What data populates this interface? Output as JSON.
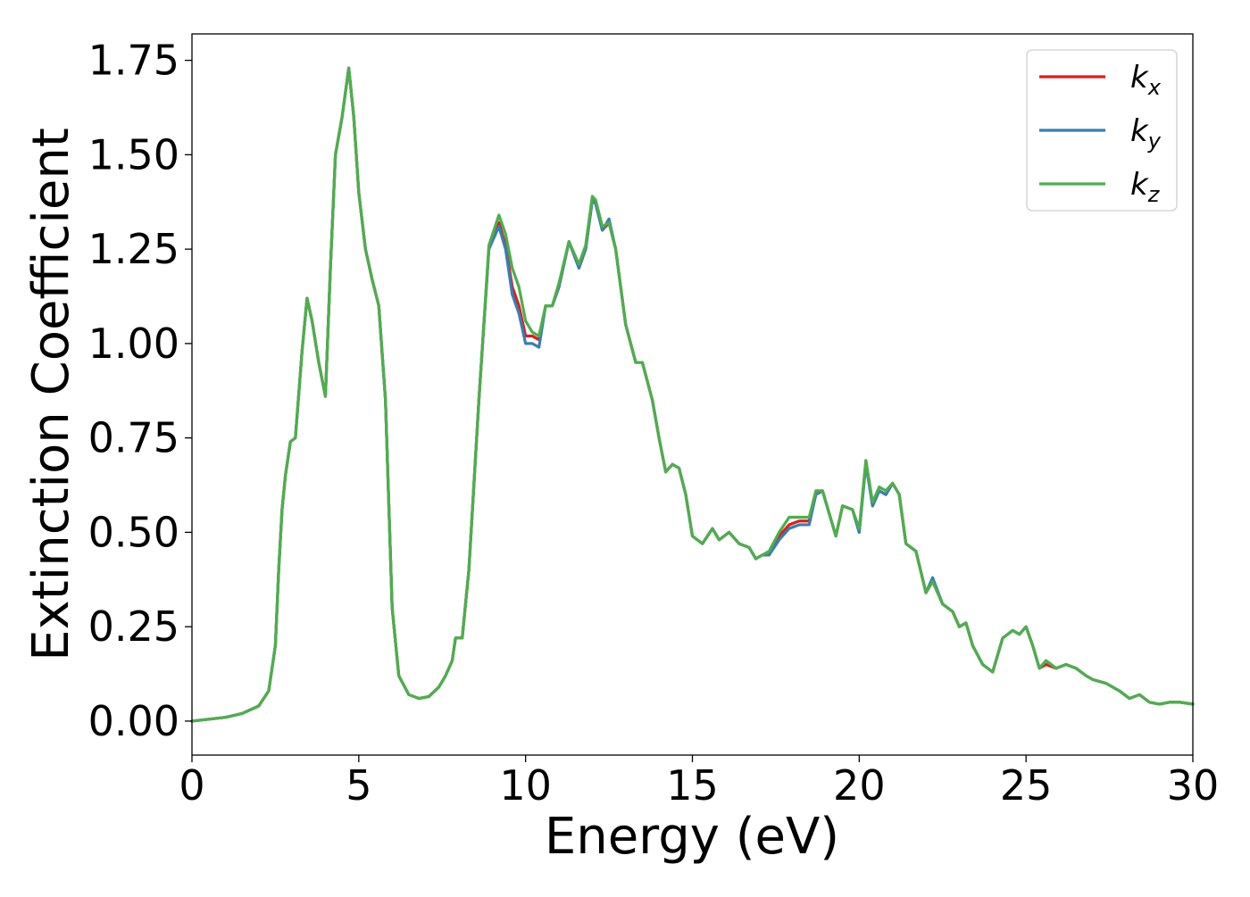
{
  "chart_data": {
    "type": "line",
    "title": "",
    "xlabel": "Energy (eV)",
    "ylabel": "Extinction Coefficient",
    "xlim": [
      0,
      30
    ],
    "ylim": [
      -0.09,
      1.82
    ],
    "xticks": [
      0,
      5,
      10,
      15,
      20,
      25,
      30
    ],
    "xtick_labels": [
      "0",
      "5",
      "10",
      "15",
      "20",
      "25",
      "30"
    ],
    "yticks": [
      0,
      0.25,
      0.5,
      0.75,
      1.0,
      1.25,
      1.5,
      1.75
    ],
    "ytick_labels": [
      "0.00",
      "0.25",
      "0.50",
      "0.75",
      "1.00",
      "1.25",
      "1.50",
      "1.75"
    ],
    "grid": false,
    "legend": {
      "placement": "top-right"
    },
    "x": [
      0,
      0.5,
      1.0,
      1.5,
      2.0,
      2.3,
      2.5,
      2.6,
      2.7,
      2.8,
      2.95,
      3.1,
      3.3,
      3.45,
      3.6,
      3.8,
      4.0,
      4.15,
      4.3,
      4.5,
      4.7,
      4.85,
      5.0,
      5.2,
      5.4,
      5.6,
      5.8,
      6.0,
      6.2,
      6.5,
      6.8,
      7.1,
      7.4,
      7.6,
      7.8,
      7.9,
      8.1,
      8.3,
      8.6,
      8.9,
      9.2,
      9.4,
      9.6,
      9.8,
      10.0,
      10.2,
      10.4,
      10.6,
      10.8,
      11.0,
      11.3,
      11.6,
      11.8,
      12.0,
      12.1,
      12.3,
      12.5,
      12.7,
      13.0,
      13.3,
      13.5,
      13.8,
      14.0,
      14.2,
      14.4,
      14.6,
      14.8,
      15.0,
      15.3,
      15.6,
      15.8,
      16.1,
      16.4,
      16.7,
      16.9,
      17.1,
      17.3,
      17.6,
      17.9,
      18.2,
      18.5,
      18.7,
      18.9,
      19.3,
      19.5,
      19.8,
      20.0,
      20.2,
      20.4,
      20.6,
      20.8,
      21.0,
      21.2,
      21.4,
      21.7,
      22.0,
      22.2,
      22.5,
      22.8,
      23.0,
      23.2,
      23.4,
      23.7,
      24.0,
      24.3,
      24.6,
      24.8,
      25.0,
      25.2,
      25.4,
      25.6,
      25.9,
      26.2,
      26.5,
      26.8,
      27.0,
      27.4,
      27.8,
      28.1,
      28.4,
      28.7,
      29.0,
      29.3,
      29.6,
      30.0
    ],
    "series": [
      {
        "name": "k_x",
        "color": "#e41a1c",
        "values": [
          0,
          0.005,
          0.01,
          0.02,
          0.04,
          0.08,
          0.2,
          0.4,
          0.56,
          0.65,
          0.74,
          0.75,
          0.98,
          1.12,
          1.06,
          0.95,
          0.86,
          1.2,
          1.5,
          1.6,
          1.73,
          1.6,
          1.4,
          1.25,
          1.17,
          1.1,
          0.85,
          0.3,
          0.12,
          0.07,
          0.06,
          0.065,
          0.09,
          0.12,
          0.16,
          0.22,
          0.22,
          0.4,
          0.85,
          1.25,
          1.32,
          1.26,
          1.15,
          1.1,
          1.02,
          1.02,
          1.01,
          1.1,
          1.1,
          1.15,
          1.27,
          1.2,
          1.25,
          1.38,
          1.37,
          1.3,
          1.32,
          1.25,
          1.05,
          0.95,
          0.95,
          0.85,
          0.75,
          0.66,
          0.68,
          0.67,
          0.6,
          0.49,
          0.47,
          0.51,
          0.48,
          0.5,
          0.47,
          0.46,
          0.43,
          0.44,
          0.44,
          0.49,
          0.52,
          0.53,
          0.53,
          0.6,
          0.61,
          0.49,
          0.57,
          0.56,
          0.5,
          0.69,
          0.57,
          0.61,
          0.6,
          0.63,
          0.6,
          0.47,
          0.45,
          0.34,
          0.37,
          0.31,
          0.29,
          0.25,
          0.26,
          0.2,
          0.15,
          0.13,
          0.22,
          0.24,
          0.23,
          0.25,
          0.2,
          0.14,
          0.15,
          0.14,
          0.15,
          0.14,
          0.12,
          0.11,
          0.1,
          0.08,
          0.06,
          0.07,
          0.05,
          0.045,
          0.05,
          0.05,
          0.045
        ]
      },
      {
        "name": "k_y",
        "color": "#377eb8",
        "values": [
          0,
          0.005,
          0.01,
          0.02,
          0.04,
          0.08,
          0.2,
          0.4,
          0.56,
          0.65,
          0.74,
          0.75,
          0.98,
          1.12,
          1.06,
          0.95,
          0.86,
          1.2,
          1.5,
          1.6,
          1.73,
          1.6,
          1.4,
          1.25,
          1.17,
          1.1,
          0.85,
          0.3,
          0.12,
          0.07,
          0.06,
          0.065,
          0.09,
          0.12,
          0.16,
          0.22,
          0.22,
          0.4,
          0.85,
          1.25,
          1.31,
          1.25,
          1.13,
          1.08,
          1.0,
          1.0,
          0.99,
          1.1,
          1.1,
          1.15,
          1.27,
          1.2,
          1.25,
          1.38,
          1.37,
          1.3,
          1.33,
          1.25,
          1.05,
          0.95,
          0.95,
          0.85,
          0.75,
          0.66,
          0.68,
          0.67,
          0.6,
          0.49,
          0.47,
          0.51,
          0.48,
          0.5,
          0.47,
          0.46,
          0.43,
          0.44,
          0.44,
          0.48,
          0.51,
          0.52,
          0.52,
          0.6,
          0.61,
          0.49,
          0.57,
          0.56,
          0.5,
          0.68,
          0.57,
          0.61,
          0.6,
          0.63,
          0.6,
          0.47,
          0.45,
          0.34,
          0.38,
          0.31,
          0.29,
          0.25,
          0.26,
          0.2,
          0.15,
          0.13,
          0.22,
          0.24,
          0.23,
          0.25,
          0.2,
          0.14,
          0.16,
          0.14,
          0.15,
          0.14,
          0.12,
          0.11,
          0.1,
          0.08,
          0.06,
          0.07,
          0.05,
          0.045,
          0.05,
          0.05,
          0.045
        ]
      },
      {
        "name": "k_z",
        "color": "#4daf4a",
        "values": [
          0,
          0.005,
          0.01,
          0.02,
          0.04,
          0.08,
          0.2,
          0.4,
          0.56,
          0.65,
          0.74,
          0.75,
          0.98,
          1.12,
          1.06,
          0.95,
          0.86,
          1.2,
          1.5,
          1.6,
          1.73,
          1.6,
          1.4,
          1.25,
          1.17,
          1.1,
          0.85,
          0.3,
          0.12,
          0.07,
          0.06,
          0.065,
          0.09,
          0.12,
          0.16,
          0.22,
          0.22,
          0.4,
          0.85,
          1.26,
          1.34,
          1.29,
          1.2,
          1.15,
          1.06,
          1.03,
          1.02,
          1.1,
          1.1,
          1.16,
          1.27,
          1.21,
          1.26,
          1.39,
          1.38,
          1.31,
          1.32,
          1.25,
          1.05,
          0.95,
          0.95,
          0.85,
          0.75,
          0.66,
          0.68,
          0.67,
          0.6,
          0.49,
          0.47,
          0.51,
          0.48,
          0.5,
          0.47,
          0.46,
          0.43,
          0.44,
          0.45,
          0.5,
          0.54,
          0.54,
          0.54,
          0.61,
          0.61,
          0.49,
          0.57,
          0.56,
          0.51,
          0.69,
          0.58,
          0.62,
          0.61,
          0.63,
          0.6,
          0.47,
          0.45,
          0.34,
          0.37,
          0.31,
          0.29,
          0.25,
          0.26,
          0.2,
          0.15,
          0.13,
          0.22,
          0.24,
          0.23,
          0.25,
          0.2,
          0.14,
          0.16,
          0.14,
          0.15,
          0.14,
          0.12,
          0.11,
          0.1,
          0.08,
          0.06,
          0.07,
          0.05,
          0.045,
          0.05,
          0.05,
          0.045
        ]
      }
    ],
    "legend_entries": [
      {
        "base": "k",
        "sub": "x",
        "color": "#e41a1c"
      },
      {
        "base": "k",
        "sub": "y",
        "color": "#377eb8"
      },
      {
        "base": "k",
        "sub": "z",
        "color": "#4daf4a"
      }
    ]
  }
}
